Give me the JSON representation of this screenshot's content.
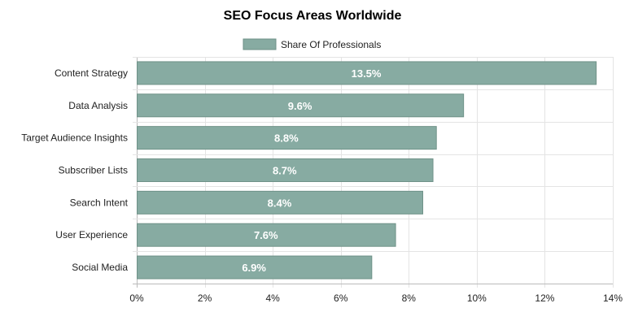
{
  "chart_data": {
    "type": "bar",
    "orientation": "horizontal",
    "title": "SEO Focus Areas Worldwide",
    "legend": {
      "label": "Share Of Professionals",
      "placement": "top-center"
    },
    "series": [
      {
        "name": "Share Of Professionals",
        "color": "#87ABA2",
        "border_color": "#6F9288",
        "values": [
          13.5,
          9.6,
          8.8,
          8.7,
          8.4,
          7.6,
          6.9
        ]
      }
    ],
    "categories": [
      "Content Strategy",
      "Data Analysis",
      "Target Audience Insights",
      "Subscriber Lists",
      "Search Intent",
      "User Experience",
      "Social Media"
    ],
    "data_labels": [
      "13.5%",
      "9.6%",
      "8.8%",
      "8.7%",
      "8.4%",
      "7.6%",
      "6.9%"
    ],
    "xlim": [
      0,
      14
    ],
    "x_ticks": [
      0,
      2,
      4,
      6,
      8,
      10,
      12,
      14
    ],
    "x_tick_labels": [
      "0%",
      "2%",
      "4%",
      "6%",
      "8%",
      "10%",
      "12%",
      "14%"
    ],
    "xlabel": "",
    "ylabel": "",
    "grid": true
  }
}
